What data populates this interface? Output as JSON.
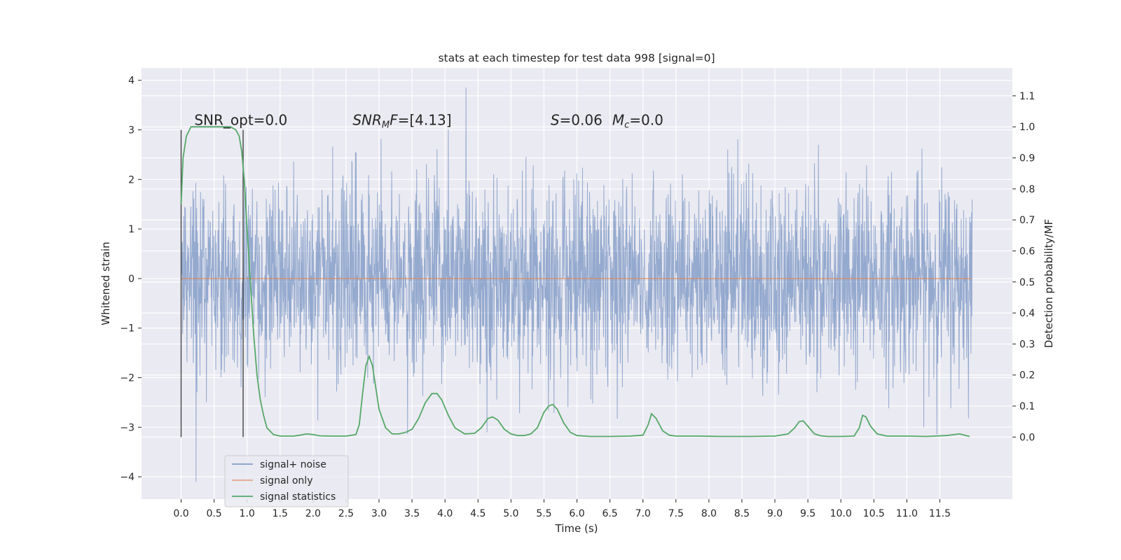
{
  "chart_data": {
    "type": "line",
    "title": "stats at each timestep for test data 998 [signal=0]",
    "xlabel": "Time (s)",
    "ylabel_left": "Whitened strain",
    "ylabel_right": "Detection probability/MF",
    "xlim": [
      -0.6,
      12.6
    ],
    "ylim_left": [
      -4.45,
      4.25
    ],
    "ylim_right": [
      -0.2,
      1.19
    ],
    "x_ticks": [
      0.0,
      0.5,
      1.0,
      1.5,
      2.0,
      2.5,
      3.0,
      3.5,
      4.0,
      4.5,
      5.0,
      5.5,
      6.0,
      6.5,
      7.0,
      7.5,
      8.0,
      8.5,
      9.0,
      9.5,
      10.0,
      10.5,
      11.0,
      11.5
    ],
    "x_tick_labels": [
      "0.0",
      "0.5",
      "1.0",
      "1.5",
      "2.0",
      "2.5",
      "3.0",
      "3.5",
      "4.0",
      "4.5",
      "5.0",
      "5.5",
      "6.0",
      "6.5",
      "7.0",
      "7.5",
      "8.0",
      "8.5",
      "9.0",
      "9.5",
      "10.0",
      "10.5",
      "11.0",
      "11.5"
    ],
    "y_ticks_left": [
      -4,
      -3,
      -2,
      -1,
      0,
      1,
      2,
      3,
      4
    ],
    "y_tick_labels_left": [
      "−4",
      "−3",
      "−2",
      "−1",
      "0",
      "1",
      "2",
      "3",
      "4"
    ],
    "y_ticks_right": [
      0.0,
      0.1,
      0.2,
      0.3,
      0.4,
      0.5,
      0.6,
      0.7,
      0.8,
      0.9,
      1.0,
      1.1
    ],
    "y_tick_labels_right": [
      "0.0",
      "0.1",
      "0.2",
      "0.3",
      "0.4",
      "0.5",
      "0.6",
      "0.7",
      "0.8",
      "0.9",
      "1.0",
      "1.1"
    ],
    "grid": true,
    "legend_position": "lower-left",
    "annotations": [
      {
        "text": "SNR_opt=0.0",
        "x": 0.2,
        "y": 3.2
      },
      {
        "text": "SNR_MF=[4.13]",
        "x": 2.6,
        "y": 3.2
      },
      {
        "text": "S=0.06   M_c=0.0",
        "x": 5.6,
        "y": 3.2
      }
    ],
    "vertical_lines": [
      {
        "x": 0.0,
        "y_range": [
          -3.2,
          3.0
        ]
      },
      {
        "x": 0.94,
        "y_range": [
          -3.2,
          3.0
        ]
      }
    ],
    "series": [
      {
        "name": "signal+ noise",
        "axis": "left",
        "color": "#4c72b0",
        "generated_noise": {
          "t_start": 0.0,
          "t_end": 11.99,
          "n_points": 2600,
          "envelope_typical": 2.0,
          "extremes": [
            -4.1,
            3.9
          ]
        }
      },
      {
        "name": "signal only",
        "axis": "left",
        "color": "#dd8452",
        "x": [
          0.0,
          11.99
        ],
        "y": [
          0.0,
          0.0
        ]
      },
      {
        "name": "signal statistics",
        "axis": "right",
        "color": "#55a868",
        "x": [
          0.0,
          0.03,
          0.08,
          0.15,
          0.25,
          0.4,
          0.6,
          0.75,
          0.83,
          0.88,
          0.92,
          0.96,
          1.0,
          1.05,
          1.1,
          1.15,
          1.2,
          1.25,
          1.3,
          1.4,
          1.5,
          1.6,
          1.7,
          1.8,
          1.9,
          2.0,
          2.1,
          2.3,
          2.5,
          2.65,
          2.7,
          2.75,
          2.8,
          2.85,
          2.9,
          2.95,
          3.0,
          3.1,
          3.2,
          3.3,
          3.4,
          3.5,
          3.6,
          3.7,
          3.8,
          3.88,
          3.95,
          4.05,
          4.15,
          4.3,
          4.45,
          4.55,
          4.65,
          4.72,
          4.8,
          4.9,
          5.0,
          5.1,
          5.2,
          5.3,
          5.4,
          5.5,
          5.57,
          5.63,
          5.7,
          5.8,
          5.9,
          6.0,
          6.2,
          6.5,
          6.8,
          7.0,
          7.08,
          7.13,
          7.2,
          7.3,
          7.4,
          7.5,
          7.8,
          8.2,
          8.6,
          9.0,
          9.2,
          9.3,
          9.37,
          9.43,
          9.5,
          9.6,
          9.7,
          9.8,
          10.0,
          10.2,
          10.28,
          10.33,
          10.38,
          10.45,
          10.55,
          10.7,
          11.0,
          11.3,
          11.6,
          11.8,
          11.95
        ],
        "y": [
          0.75,
          0.9,
          0.97,
          1.0,
          1.0,
          1.0,
          1.0,
          1.0,
          0.99,
          0.97,
          0.92,
          0.82,
          0.67,
          0.5,
          0.33,
          0.2,
          0.12,
          0.07,
          0.03,
          0.008,
          0.003,
          0.003,
          0.003,
          0.006,
          0.01,
          0.008,
          0.004,
          0.003,
          0.003,
          0.008,
          0.04,
          0.14,
          0.23,
          0.26,
          0.23,
          0.16,
          0.09,
          0.03,
          0.01,
          0.01,
          0.015,
          0.025,
          0.06,
          0.11,
          0.14,
          0.14,
          0.12,
          0.07,
          0.03,
          0.01,
          0.012,
          0.03,
          0.06,
          0.065,
          0.055,
          0.025,
          0.01,
          0.005,
          0.005,
          0.01,
          0.03,
          0.08,
          0.1,
          0.105,
          0.09,
          0.045,
          0.015,
          0.005,
          0.002,
          0.002,
          0.003,
          0.006,
          0.04,
          0.075,
          0.06,
          0.02,
          0.006,
          0.003,
          0.003,
          0.002,
          0.002,
          0.003,
          0.01,
          0.03,
          0.05,
          0.052,
          0.035,
          0.01,
          0.004,
          0.002,
          0.002,
          0.003,
          0.03,
          0.07,
          0.065,
          0.035,
          0.01,
          0.003,
          0.003,
          0.002,
          0.005,
          0.01,
          0.002
        ]
      }
    ]
  }
}
